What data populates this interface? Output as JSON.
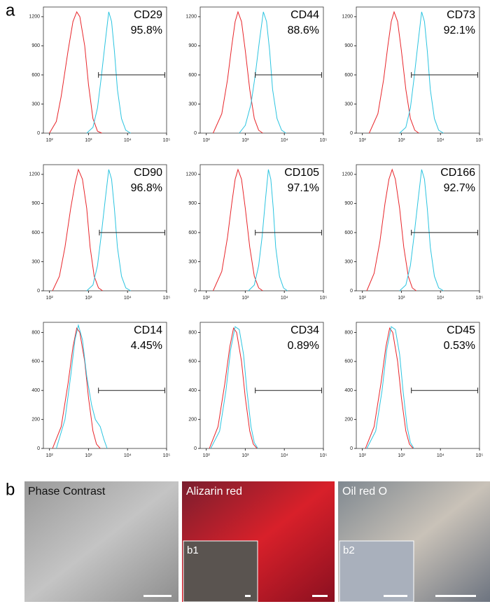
{
  "panel_labels": [
    "a",
    "b"
  ],
  "chart_data": [
    {
      "type": "line",
      "title": "CD29",
      "annotation": "95.8%",
      "log_x": true,
      "xlim": [
        70,
        100000
      ],
      "ylim": [
        0,
        1300
      ],
      "xticks": [
        {
          "value": 100,
          "label": "10²"
        },
        {
          "value": 1000,
          "label": "10³"
        },
        {
          "value": 10000,
          "label": "10⁴"
        },
        {
          "value": 100000,
          "label": "10⁵"
        }
      ],
      "yticks": [
        0,
        300,
        600,
        900,
        1200
      ],
      "gate": {
        "x": [
          1800,
          90000
        ],
        "y": 600
      },
      "series": [
        {
          "color": "#e8252a",
          "x": [
            100,
            150,
            200,
            300,
            400,
            500,
            600,
            800,
            1000,
            1300,
            1700,
            2200
          ],
          "values": [
            0,
            120,
            380,
            850,
            1150,
            1250,
            1200,
            900,
            500,
            150,
            20,
            0
          ]
        },
        {
          "color": "#2cc4e0",
          "x": [
            900,
            1300,
            1700,
            2100,
            2700,
            3300,
            3900,
            4600,
            5500,
            7000,
            9000,
            12000
          ],
          "values": [
            0,
            60,
            260,
            560,
            950,
            1250,
            1150,
            850,
            450,
            150,
            30,
            0
          ]
        }
      ]
    },
    {
      "type": "line",
      "title": "CD44",
      "annotation": "88.6%",
      "log_x": true,
      "xlim": [
        70,
        100000
      ],
      "ylim": [
        0,
        1300
      ],
      "xticks": [
        {
          "value": 100,
          "label": "10²"
        },
        {
          "value": 1000,
          "label": "10³"
        },
        {
          "value": 10000,
          "label": "10⁴"
        },
        {
          "value": 100000,
          "label": "10⁵"
        }
      ],
      "yticks": [
        0,
        300,
        600,
        900,
        1200
      ],
      "gate": {
        "x": [
          1800,
          90000
        ],
        "y": 600
      },
      "series": [
        {
          "color": "#e8252a",
          "x": [
            150,
            250,
            350,
            450,
            550,
            650,
            800,
            1000,
            1300,
            1700,
            2200,
            2800
          ],
          "values": [
            0,
            200,
            550,
            900,
            1150,
            1250,
            1150,
            850,
            450,
            150,
            30,
            0
          ]
        },
        {
          "color": "#2cc4e0",
          "x": [
            700,
            1000,
            1400,
            1800,
            2300,
            2900,
            3500,
            4200,
            5000,
            6500,
            8500,
            11000
          ],
          "values": [
            0,
            80,
            300,
            600,
            950,
            1250,
            1150,
            850,
            450,
            150,
            30,
            0
          ]
        }
      ]
    },
    {
      "type": "line",
      "title": "CD73",
      "annotation": "92.1%",
      "log_x": true,
      "xlim": [
        70,
        100000
      ],
      "ylim": [
        0,
        1300
      ],
      "xticks": [
        {
          "value": 100,
          "label": "10²"
        },
        {
          "value": 1000,
          "label": "10³"
        },
        {
          "value": 10000,
          "label": "10⁴"
        },
        {
          "value": 100000,
          "label": "10⁵"
        }
      ],
      "yticks": [
        0,
        300,
        600,
        900,
        1200
      ],
      "gate": {
        "x": [
          1800,
          90000
        ],
        "y": 600
      },
      "series": [
        {
          "color": "#e8252a",
          "x": [
            150,
            250,
            350,
            450,
            550,
            650,
            800,
            1000,
            1300,
            1700,
            2200,
            2800
          ],
          "values": [
            0,
            200,
            550,
            900,
            1150,
            1250,
            1150,
            850,
            450,
            150,
            30,
            0
          ]
        },
        {
          "color": "#2cc4e0",
          "x": [
            900,
            1300,
            1700,
            2100,
            2700,
            3300,
            3900,
            4600,
            5500,
            7000,
            9000,
            12000
          ],
          "values": [
            0,
            60,
            260,
            560,
            950,
            1250,
            1150,
            850,
            450,
            150,
            30,
            0
          ]
        }
      ]
    },
    {
      "type": "line",
      "title": "CD90",
      "annotation": "96.8%",
      "log_x": true,
      "xlim": [
        70,
        100000
      ],
      "ylim": [
        0,
        1300
      ],
      "xticks": [
        {
          "value": 100,
          "label": "10²"
        },
        {
          "value": 1000,
          "label": "10³"
        },
        {
          "value": 10000,
          "label": "10⁴"
        },
        {
          "value": 100000,
          "label": "10⁵"
        }
      ],
      "yticks": [
        0,
        300,
        600,
        900,
        1200
      ],
      "gate": {
        "x": [
          1900,
          90000
        ],
        "y": 600
      },
      "series": [
        {
          "color": "#e8252a",
          "x": [
            120,
            180,
            250,
            350,
            450,
            550,
            700,
            900,
            1100,
            1400,
            1800,
            2300
          ],
          "values": [
            0,
            150,
            450,
            850,
            1100,
            1250,
            1150,
            850,
            450,
            150,
            30,
            0
          ]
        },
        {
          "color": "#2cc4e0",
          "x": [
            900,
            1300,
            1700,
            2100,
            2700,
            3300,
            3900,
            4600,
            5500,
            7000,
            9000,
            12000
          ],
          "values": [
            0,
            60,
            260,
            560,
            950,
            1250,
            1150,
            850,
            450,
            150,
            30,
            0
          ]
        }
      ]
    },
    {
      "type": "line",
      "title": "CD105",
      "annotation": "97.1%",
      "log_x": true,
      "xlim": [
        70,
        100000
      ],
      "ylim": [
        0,
        1300
      ],
      "xticks": [
        {
          "value": 100,
          "label": "10²"
        },
        {
          "value": 1000,
          "label": "10³"
        },
        {
          "value": 10000,
          "label": "10⁴"
        },
        {
          "value": 100000,
          "label": "10⁵"
        }
      ],
      "yticks": [
        0,
        300,
        600,
        900,
        1200
      ],
      "gate": {
        "x": [
          1800,
          90000
        ],
        "y": 600
      },
      "series": [
        {
          "color": "#e8252a",
          "x": [
            150,
            250,
            350,
            450,
            550,
            650,
            800,
            1000,
            1300,
            1700,
            2200,
            2800
          ],
          "values": [
            0,
            200,
            550,
            900,
            1150,
            1250,
            1150,
            850,
            450,
            150,
            30,
            0
          ]
        },
        {
          "color": "#2cc4e0",
          "x": [
            1200,
            1700,
            2200,
            2700,
            3300,
            3900,
            4500,
            5200,
            6000,
            7500,
            9500,
            12000
          ],
          "values": [
            0,
            60,
            260,
            560,
            950,
            1250,
            1150,
            850,
            450,
            150,
            30,
            0
          ]
        }
      ]
    },
    {
      "type": "line",
      "title": "CD166",
      "annotation": "92.7%",
      "log_x": true,
      "xlim": [
        70,
        100000
      ],
      "ylim": [
        0,
        1300
      ],
      "xticks": [
        {
          "value": 100,
          "label": "10²"
        },
        {
          "value": 1000,
          "label": "10³"
        },
        {
          "value": 10000,
          "label": "10⁴"
        },
        {
          "value": 100000,
          "label": "10⁵"
        }
      ],
      "yticks": [
        0,
        300,
        600,
        900,
        1200
      ],
      "gate": {
        "x": [
          1800,
          90000
        ],
        "y": 600
      },
      "series": [
        {
          "color": "#e8252a",
          "x": [
            130,
            200,
            280,
            380,
            480,
            580,
            700,
            900,
            1150,
            1500,
            1900,
            2400
          ],
          "values": [
            0,
            180,
            500,
            900,
            1150,
            1250,
            1150,
            850,
            450,
            150,
            30,
            0
          ]
        },
        {
          "color": "#2cc4e0",
          "x": [
            900,
            1300,
            1700,
            2100,
            2700,
            3300,
            3900,
            4600,
            5500,
            7000,
            9000,
            12000
          ],
          "values": [
            0,
            60,
            260,
            560,
            950,
            1250,
            1150,
            850,
            450,
            150,
            30,
            0
          ]
        }
      ]
    },
    {
      "type": "line",
      "title": "CD14",
      "annotation": "4.45%",
      "log_x": true,
      "xlim": [
        70,
        100000
      ],
      "ylim": [
        0,
        870
      ],
      "xticks": [
        {
          "value": 100,
          "label": "10²"
        },
        {
          "value": 1000,
          "label": "10³"
        },
        {
          "value": 10000,
          "label": "10⁴"
        },
        {
          "value": 100000,
          "label": "10⁵"
        }
      ],
      "yticks": [
        0,
        200,
        400,
        600,
        800
      ],
      "gate": {
        "x": [
          1800,
          90000
        ],
        "y": 400
      },
      "series": [
        {
          "color": "#e8252a",
          "x": [
            120,
            200,
            300,
            400,
            500,
            600,
            800,
            1000,
            1300,
            1600,
            2000
          ],
          "values": [
            0,
            150,
            450,
            700,
            830,
            800,
            600,
            350,
            120,
            30,
            0
          ]
        },
        {
          "color": "#2cc4e0",
          "x": [
            150,
            250,
            350,
            450,
            550,
            700,
            900,
            1200,
            1500,
            2000,
            2500,
            3000
          ],
          "values": [
            0,
            200,
            500,
            750,
            850,
            750,
            500,
            300,
            200,
            150,
            60,
            0
          ]
        }
      ]
    },
    {
      "type": "line",
      "title": "CD34",
      "annotation": "0.89%",
      "log_x": true,
      "xlim": [
        70,
        100000
      ],
      "ylim": [
        0,
        870
      ],
      "xticks": [
        {
          "value": 100,
          "label": "10²"
        },
        {
          "value": 1000,
          "label": "10³"
        },
        {
          "value": 10000,
          "label": "10⁴"
        },
        {
          "value": 100000,
          "label": "10⁵"
        }
      ],
      "yticks": [
        0,
        200,
        400,
        600,
        800
      ],
      "gate": {
        "x": [
          1800,
          90000
        ],
        "y": 400
      },
      "series": [
        {
          "color": "#e8252a",
          "x": [
            120,
            200,
            300,
            400,
            500,
            600,
            800,
            1000,
            1300,
            1600,
            2000
          ],
          "values": [
            0,
            150,
            450,
            700,
            830,
            800,
            600,
            350,
            120,
            30,
            0
          ]
        },
        {
          "color": "#2cc4e0",
          "x": [
            130,
            220,
            320,
            420,
            550,
            700,
            900,
            1100,
            1400,
            1700,
            2100
          ],
          "values": [
            0,
            120,
            400,
            680,
            840,
            820,
            650,
            400,
            150,
            40,
            0
          ]
        }
      ]
    },
    {
      "type": "line",
      "title": "CD45",
      "annotation": "0.53%",
      "log_x": true,
      "xlim": [
        70,
        100000
      ],
      "ylim": [
        0,
        870
      ],
      "xticks": [
        {
          "value": 100,
          "label": "10²"
        },
        {
          "value": 1000,
          "label": "10³"
        },
        {
          "value": 10000,
          "label": "10⁴"
        },
        {
          "value": 100000,
          "label": "10⁵"
        }
      ],
      "yticks": [
        0,
        200,
        400,
        600,
        800
      ],
      "gate": {
        "x": [
          1800,
          90000
        ],
        "y": 400
      },
      "series": [
        {
          "color": "#e8252a",
          "x": [
            120,
            200,
            300,
            400,
            500,
            600,
            800,
            1000,
            1300,
            1600,
            2000
          ],
          "values": [
            0,
            150,
            450,
            700,
            830,
            800,
            600,
            350,
            120,
            30,
            0
          ]
        },
        {
          "color": "#2cc4e0",
          "x": [
            130,
            220,
            320,
            420,
            550,
            700,
            900,
            1100,
            1400,
            1700,
            2100
          ],
          "values": [
            0,
            120,
            400,
            680,
            840,
            820,
            650,
            400,
            150,
            40,
            0
          ]
        }
      ]
    }
  ],
  "images": [
    {
      "label": "Phase Contrast"
    },
    {
      "label": "Alizarin red",
      "inset": "b1"
    },
    {
      "label": "Oil red O",
      "inset": "b2"
    }
  ]
}
